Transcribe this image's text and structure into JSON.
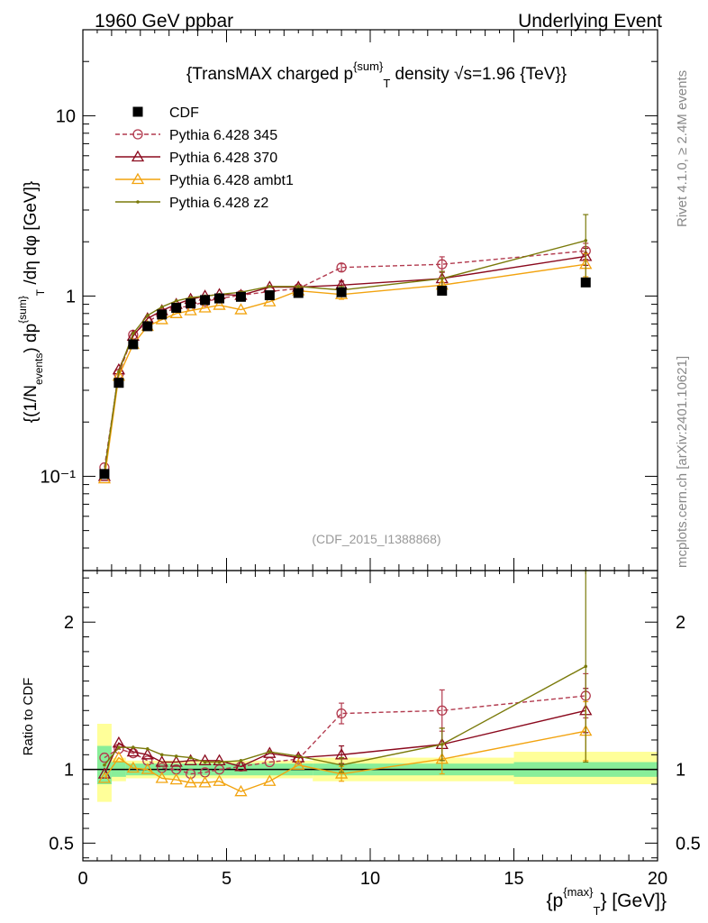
{
  "header": {
    "left": "1960 GeV ppbar",
    "right": "Underlying Event"
  },
  "side_labels": {
    "rivet": "Rivet 4.1.0, ≥ 2.4M events",
    "mcplots": "mcplots.cern.ch [arXiv:2401.10621]"
  },
  "chart_data": [
    {
      "type": "line",
      "panel": "main",
      "title": "{TransMAX charged p^{sum}_T density √s=1.96 {TeV}}",
      "title_parts": {
        "pre": "{TransMAX charged p",
        "sup": "{sum}",
        "sub": "T",
        "post": " density √s=1.96 {TeV}}"
      },
      "ylabel": "{(1/N_{events}) dp^{sum}_T /dη dφ [GeV]}",
      "ylabel_parts": {
        "a": "{(1/N",
        "a_sub": "events",
        "b": ") dp",
        "b_sup": "{sum}",
        "b_sub": "T",
        "c": " /dη  dφ [GeV]}"
      },
      "yscale": "log",
      "xlim": [
        0,
        20
      ],
      "ylim": [
        0.03,
        30
      ],
      "y_ticks": [
        {
          "value": 0.1,
          "label": "10⁻¹"
        },
        {
          "value": 1,
          "label": "1"
        },
        {
          "value": 10,
          "label": "10"
        }
      ],
      "watermark": "(CDF_2015_I1388868)",
      "x": [
        0.75,
        1.25,
        1.75,
        2.25,
        2.75,
        3.25,
        3.75,
        4.25,
        4.75,
        5.5,
        6.5,
        7.5,
        9.0,
        12.5,
        17.5
      ],
      "data": {
        "name": "CDF",
        "values": [
          0.103,
          0.33,
          0.54,
          0.68,
          0.79,
          0.86,
          0.91,
          0.95,
          0.97,
          0.99,
          1.01,
          1.04,
          1.05,
          1.07,
          1.19
        ]
      },
      "series": [
        {
          "name": "Pythia 6.428 345",
          "color": "#b23a4e",
          "marker": "circle",
          "dash": "5,3",
          "values": [
            0.112,
            0.37,
            0.61,
            0.72,
            0.8,
            0.86,
            0.88,
            0.93,
            0.97,
            1.01,
            1.06,
            1.1,
            1.44,
            1.5,
            1.78
          ],
          "err": [
            0,
            0,
            0,
            0,
            0,
            0,
            0,
            0,
            0,
            0,
            0,
            0,
            0.07,
            0.15,
            0.18
          ]
        },
        {
          "name": "Pythia 6.428 370",
          "color": "#8b0a1e",
          "marker": "triangle",
          "dash": "",
          "values": [
            0.1,
            0.39,
            0.6,
            0.75,
            0.83,
            0.9,
            0.96,
            1.0,
            1.02,
            1.01,
            1.12,
            1.12,
            1.15,
            1.25,
            1.66
          ],
          "err": [
            0,
            0,
            0,
            0,
            0,
            0,
            0,
            0,
            0,
            0,
            0,
            0,
            0.06,
            0.12,
            0.18
          ]
        },
        {
          "name": "Pythia 6.428 ambt1",
          "color": "#f2a30f",
          "marker": "triangle",
          "dash": "",
          "values": [
            0.097,
            0.36,
            0.54,
            0.68,
            0.74,
            0.8,
            0.83,
            0.86,
            0.89,
            0.84,
            0.93,
            1.07,
            1.02,
            1.15,
            1.5
          ],
          "err": [
            0,
            0,
            0,
            0,
            0,
            0,
            0,
            0,
            0,
            0,
            0,
            0,
            0.06,
            0.11,
            0.22
          ]
        },
        {
          "name": "Pythia 6.428 z2",
          "color": "#7a7a0a",
          "marker": "dot",
          "dash": "",
          "values": [
            0.106,
            0.38,
            0.62,
            0.78,
            0.87,
            0.94,
            0.98,
            1.0,
            1.02,
            1.05,
            1.13,
            1.13,
            1.08,
            1.25,
            2.03
          ],
          "err": [
            0,
            0,
            0,
            0,
            0,
            0,
            0,
            0,
            0,
            0,
            0,
            0,
            0.05,
            0.12,
            0.8
          ]
        }
      ]
    },
    {
      "type": "line",
      "panel": "ratio",
      "ylabel": "Ratio to CDF",
      "xlabel_parts": {
        "pre": "{p",
        "sup": "{max}",
        "sub": "T",
        "post": "} [GeV]}"
      },
      "xlim": [
        0,
        20
      ],
      "ylim": [
        0.38,
        2.35
      ],
      "y_ticks": [
        {
          "value": 0.5,
          "label": "0.5"
        },
        {
          "value": 1,
          "label": "1"
        },
        {
          "value": 2,
          "label": "2"
        }
      ],
      "x_ticks": [
        {
          "value": 0,
          "label": "0"
        },
        {
          "value": 5,
          "label": "5"
        },
        {
          "value": 10,
          "label": "10"
        },
        {
          "value": 15,
          "label": "15"
        },
        {
          "value": 20,
          "label": "20"
        }
      ],
      "bands": [
        {
          "x0": 0.5,
          "x1": 1.0,
          "stat": [
            0.9,
            1.16
          ],
          "tot": [
            0.78,
            1.31
          ]
        },
        {
          "x0": 1.0,
          "x1": 1.5,
          "stat": [
            0.95,
            1.05
          ],
          "tot": [
            0.92,
            1.08
          ]
        },
        {
          "x0": 1.5,
          "x1": 5.0,
          "stat": [
            0.96,
            1.04
          ],
          "tot": [
            0.94,
            1.06
          ]
        },
        {
          "x0": 5.0,
          "x1": 8.0,
          "stat": [
            0.96,
            1.04
          ],
          "tot": [
            0.94,
            1.06
          ]
        },
        {
          "x0": 8.0,
          "x1": 10.0,
          "stat": [
            0.96,
            1.04
          ],
          "tot": [
            0.92,
            1.08
          ]
        },
        {
          "x0": 10.0,
          "x1": 15.0,
          "stat": [
            0.96,
            1.04
          ],
          "tot": [
            0.92,
            1.08
          ]
        },
        {
          "x0": 15.0,
          "x1": 20.0,
          "stat": [
            0.95,
            1.05
          ],
          "tot": [
            0.9,
            1.12
          ]
        }
      ],
      "x": [
        0.75,
        1.25,
        1.75,
        2.25,
        2.75,
        3.25,
        3.75,
        4.25,
        4.75,
        5.5,
        6.5,
        7.5,
        9.0,
        12.5,
        17.5
      ],
      "series": [
        {
          "name": "Pythia 6.428 345",
          "color": "#b23a4e",
          "marker": "circle",
          "dash": "5,3",
          "values": [
            1.08,
            1.14,
            1.11,
            1.06,
            1.01,
            1.0,
            0.97,
            0.98,
            1.0,
            1.02,
            1.05,
            1.07,
            1.38,
            1.4,
            1.5
          ],
          "err": [
            0,
            0,
            0,
            0,
            0,
            0,
            0,
            0,
            0,
            0,
            0,
            0,
            0.07,
            0.14,
            0.15
          ]
        },
        {
          "name": "Pythia 6.428 370",
          "color": "#8b0a1e",
          "marker": "triangle",
          "dash": "",
          "values": [
            0.97,
            1.18,
            1.12,
            1.1,
            1.05,
            1.05,
            1.06,
            1.06,
            1.06,
            1.02,
            1.11,
            1.08,
            1.1,
            1.17,
            1.4
          ],
          "err": [
            0,
            0,
            0,
            0,
            0,
            0,
            0,
            0,
            0,
            0,
            0,
            0,
            0.06,
            0.11,
            0.15
          ]
        },
        {
          "name": "Pythia 6.428 ambt1",
          "color": "#f2a30f",
          "marker": "triangle",
          "dash": "",
          "values": [
            0.94,
            1.08,
            1.01,
            1.0,
            0.94,
            0.93,
            0.91,
            0.91,
            0.92,
            0.85,
            0.92,
            1.03,
            0.97,
            1.07,
            1.26
          ],
          "err": [
            0,
            0,
            0,
            0,
            0,
            0,
            0,
            0,
            0,
            0,
            0,
            0,
            0.05,
            0.1,
            0.2
          ]
        },
        {
          "name": "Pythia 6.428 z2",
          "color": "#7a7a0a",
          "marker": "dot",
          "dash": "",
          "values": [
            1.03,
            1.15,
            1.15,
            1.14,
            1.1,
            1.09,
            1.08,
            1.05,
            1.05,
            1.06,
            1.12,
            1.09,
            1.03,
            1.17,
            1.7
          ],
          "err": [
            0,
            0,
            0,
            0,
            0,
            0,
            0,
            0,
            0,
            0,
            0,
            0,
            0.05,
            0.11,
            0.65
          ]
        }
      ]
    }
  ]
}
